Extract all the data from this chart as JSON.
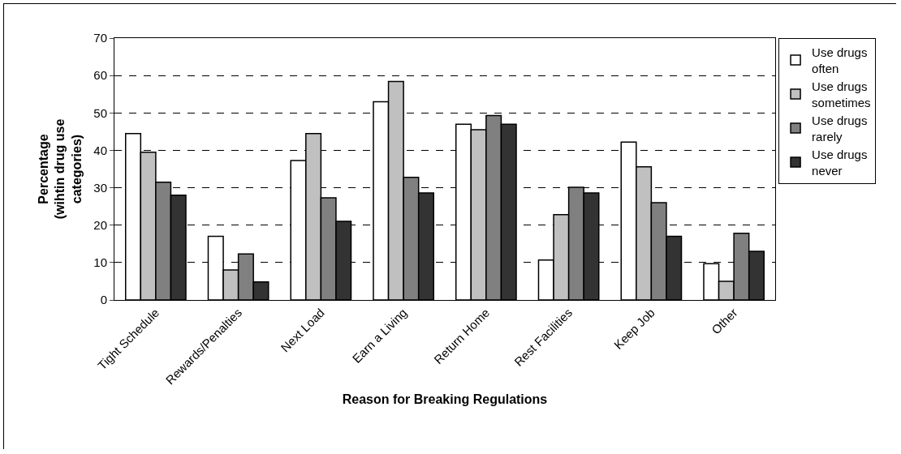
{
  "chart_data": {
    "type": "bar",
    "xlabel": "Reason for Breaking Regulations",
    "ylabel": "Percentage (wihtin drug use categories)",
    "categories": [
      "Tight Schedule",
      "Rewards/Penalties",
      "Next Load",
      "Earn a Living",
      "Return Home",
      "Rest Facilities",
      "Keep Job",
      "Other"
    ],
    "series": [
      {
        "name": "Use drugs often",
        "color": "#ffffff",
        "values": [
          44.5,
          17,
          37.3,
          53,
          47,
          10.7,
          42.2,
          9.7
        ]
      },
      {
        "name": "Use drugs sometimes",
        "color": "#c0c0c0",
        "values": [
          39.5,
          8,
          44.5,
          58.4,
          45.5,
          22.8,
          35.6,
          5
        ]
      },
      {
        "name": "Use drugs rarely",
        "color": "#808080",
        "values": [
          31.5,
          12.3,
          27.3,
          32.8,
          49.3,
          30.1,
          26,
          17.8
        ]
      },
      {
        "name": "Use drugs never",
        "color": "#333333",
        "values": [
          28,
          4.8,
          21,
          28.6,
          47,
          28.6,
          17,
          13
        ]
      }
    ],
    "ylim": [
      0,
      70
    ],
    "yticks": [
      0,
      10,
      20,
      30,
      40,
      50,
      60,
      70
    ],
    "grid": "y",
    "legend": "right"
  }
}
